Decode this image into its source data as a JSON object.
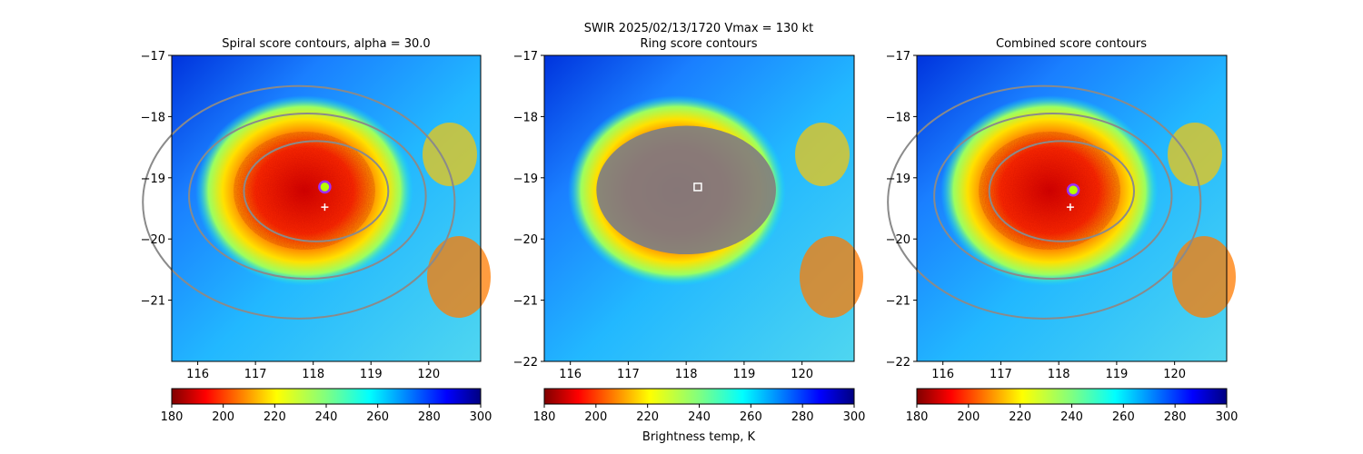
{
  "figure": {
    "suptitle": "SWIR  2025/02/13/1720    Vmax = 130 kt",
    "colorbar_label": "Brightness temp, K"
  },
  "chart_data": [
    {
      "type": "heatmap",
      "id": "spiral",
      "title": "Spiral score contours, alpha = 30.0",
      "x_ticks": [
        116,
        117,
        118,
        119,
        120
      ],
      "y_ticks": [
        -17,
        -18,
        -19,
        -20,
        -21
      ],
      "xlim": [
        115.55,
        120.9
      ],
      "ylim": [
        -22.0,
        -17.0
      ],
      "colormap": "jet_r",
      "colorbar_ticks": [
        180,
        200,
        220,
        240,
        260,
        280,
        300
      ],
      "clim": [
        180,
        300
      ],
      "storm_center": [
        118.2,
        -19.15
      ],
      "best_track_marker": [
        118.2,
        -19.48
      ],
      "contours": [
        {
          "ring": "inner",
          "cx": 118.05,
          "cy": -19.22,
          "rx": 1.25,
          "ry": 0.82
        },
        {
          "ring": "middle",
          "cx": 117.9,
          "cy": -19.3,
          "rx": 2.05,
          "ry": 1.35
        },
        {
          "ring": "outer",
          "cx": 117.75,
          "cy": -19.4,
          "rx": 2.7,
          "ry": 1.9
        }
      ]
    },
    {
      "type": "heatmap",
      "id": "ring",
      "title": "Ring score contours",
      "x_ticks": [
        116,
        117,
        118,
        119,
        120
      ],
      "y_ticks": [
        -17,
        -18,
        -19,
        -20,
        -21,
        -22
      ],
      "xlim": [
        115.55,
        120.9
      ],
      "ylim": [
        -22.0,
        -17.0
      ],
      "colormap": "jet_r",
      "colorbar_ticks": [
        180,
        200,
        220,
        240,
        260,
        280,
        300
      ],
      "clim": [
        180,
        300
      ],
      "storm_center": [
        118.2,
        -19.15
      ],
      "ring_region": {
        "cx": 118.0,
        "cy": -19.2,
        "rx": 1.55,
        "ry": 1.05
      }
    },
    {
      "type": "heatmap",
      "id": "combined",
      "title": "Combined score contours",
      "x_ticks": [
        116,
        117,
        118,
        119,
        120
      ],
      "y_ticks": [
        -17,
        -18,
        -19,
        -20,
        -21,
        -22
      ],
      "xlim": [
        115.55,
        120.9
      ],
      "ylim": [
        -22.0,
        -17.0
      ],
      "colormap": "jet_r",
      "colorbar_ticks": [
        180,
        200,
        220,
        240,
        260,
        280,
        300
      ],
      "clim": [
        180,
        300
      ],
      "storm_center": [
        118.25,
        -19.2
      ],
      "best_track_marker": [
        118.2,
        -19.48
      ],
      "contours": [
        {
          "ring": "inner",
          "cx": 118.05,
          "cy": -19.22,
          "rx": 1.25,
          "ry": 0.82
        },
        {
          "ring": "middle",
          "cx": 117.9,
          "cy": -19.3,
          "rx": 2.05,
          "ry": 1.35
        },
        {
          "ring": "outer",
          "cx": 117.75,
          "cy": -19.4,
          "rx": 2.7,
          "ry": 1.9
        }
      ]
    }
  ]
}
